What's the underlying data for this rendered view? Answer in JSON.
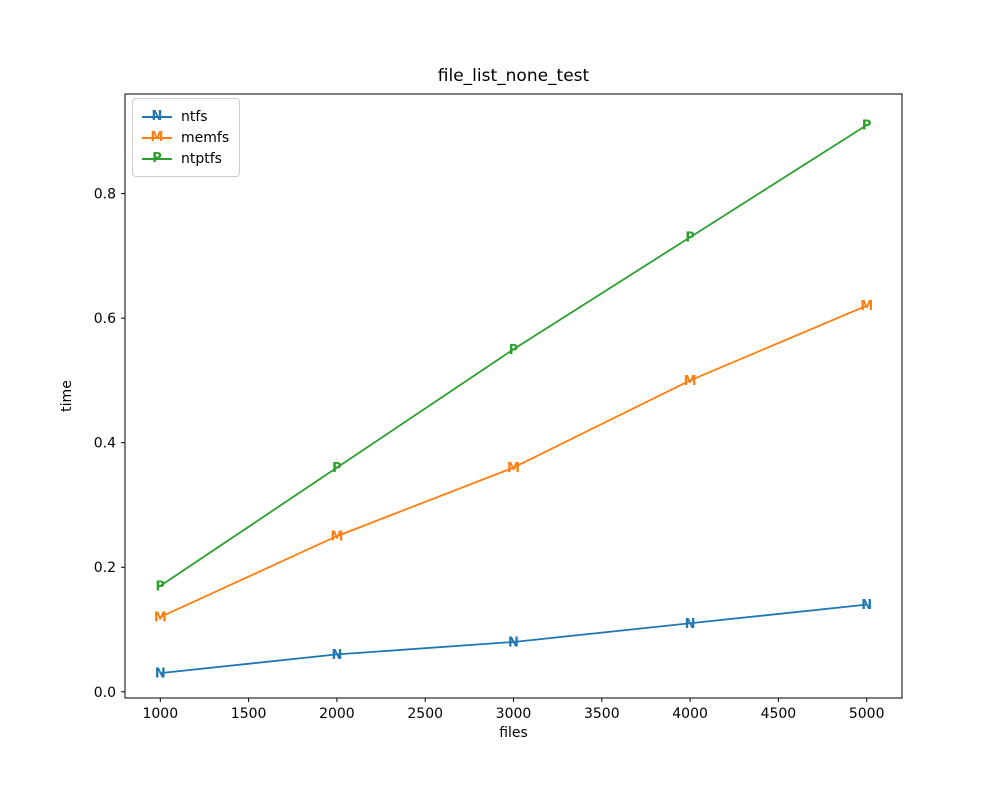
{
  "chart_data": {
    "type": "line",
    "title": "file_list_none_test",
    "xlabel": "files",
    "ylabel": "time",
    "x": [
      1000,
      2000,
      3000,
      4000,
      5000
    ],
    "series": [
      {
        "name": "ntfs",
        "marker": "N",
        "color": "#1f77b4",
        "values": [
          0.03,
          0.06,
          0.08,
          0.11,
          0.14
        ]
      },
      {
        "name": "memfs",
        "marker": "M",
        "color": "#ff7f0e",
        "values": [
          0.12,
          0.25,
          0.36,
          0.5,
          0.62
        ]
      },
      {
        "name": "ntptfs",
        "marker": "P",
        "color": "#2ca02c",
        "values": [
          0.17,
          0.36,
          0.55,
          0.73,
          0.91
        ]
      }
    ],
    "xlim": [
      800,
      5200
    ],
    "ylim": [
      -0.01,
      0.96
    ],
    "xticks": [
      1000,
      1500,
      2000,
      2500,
      3000,
      3500,
      4000,
      4500,
      5000
    ],
    "xtick_labels": [
      "1000",
      "1500",
      "2000",
      "2500",
      "3000",
      "3500",
      "4000",
      "4500",
      "5000"
    ],
    "yticks": [
      0.0,
      0.2,
      0.4,
      0.6,
      0.8
    ],
    "ytick_labels": [
      "0.0",
      "0.2",
      "0.4",
      "0.6",
      "0.8"
    ],
    "grid": false,
    "legend_position": "upper-left",
    "axis_color": "#000000",
    "legend_border_color": "#cccccc",
    "background_color": "#ffffff"
  }
}
